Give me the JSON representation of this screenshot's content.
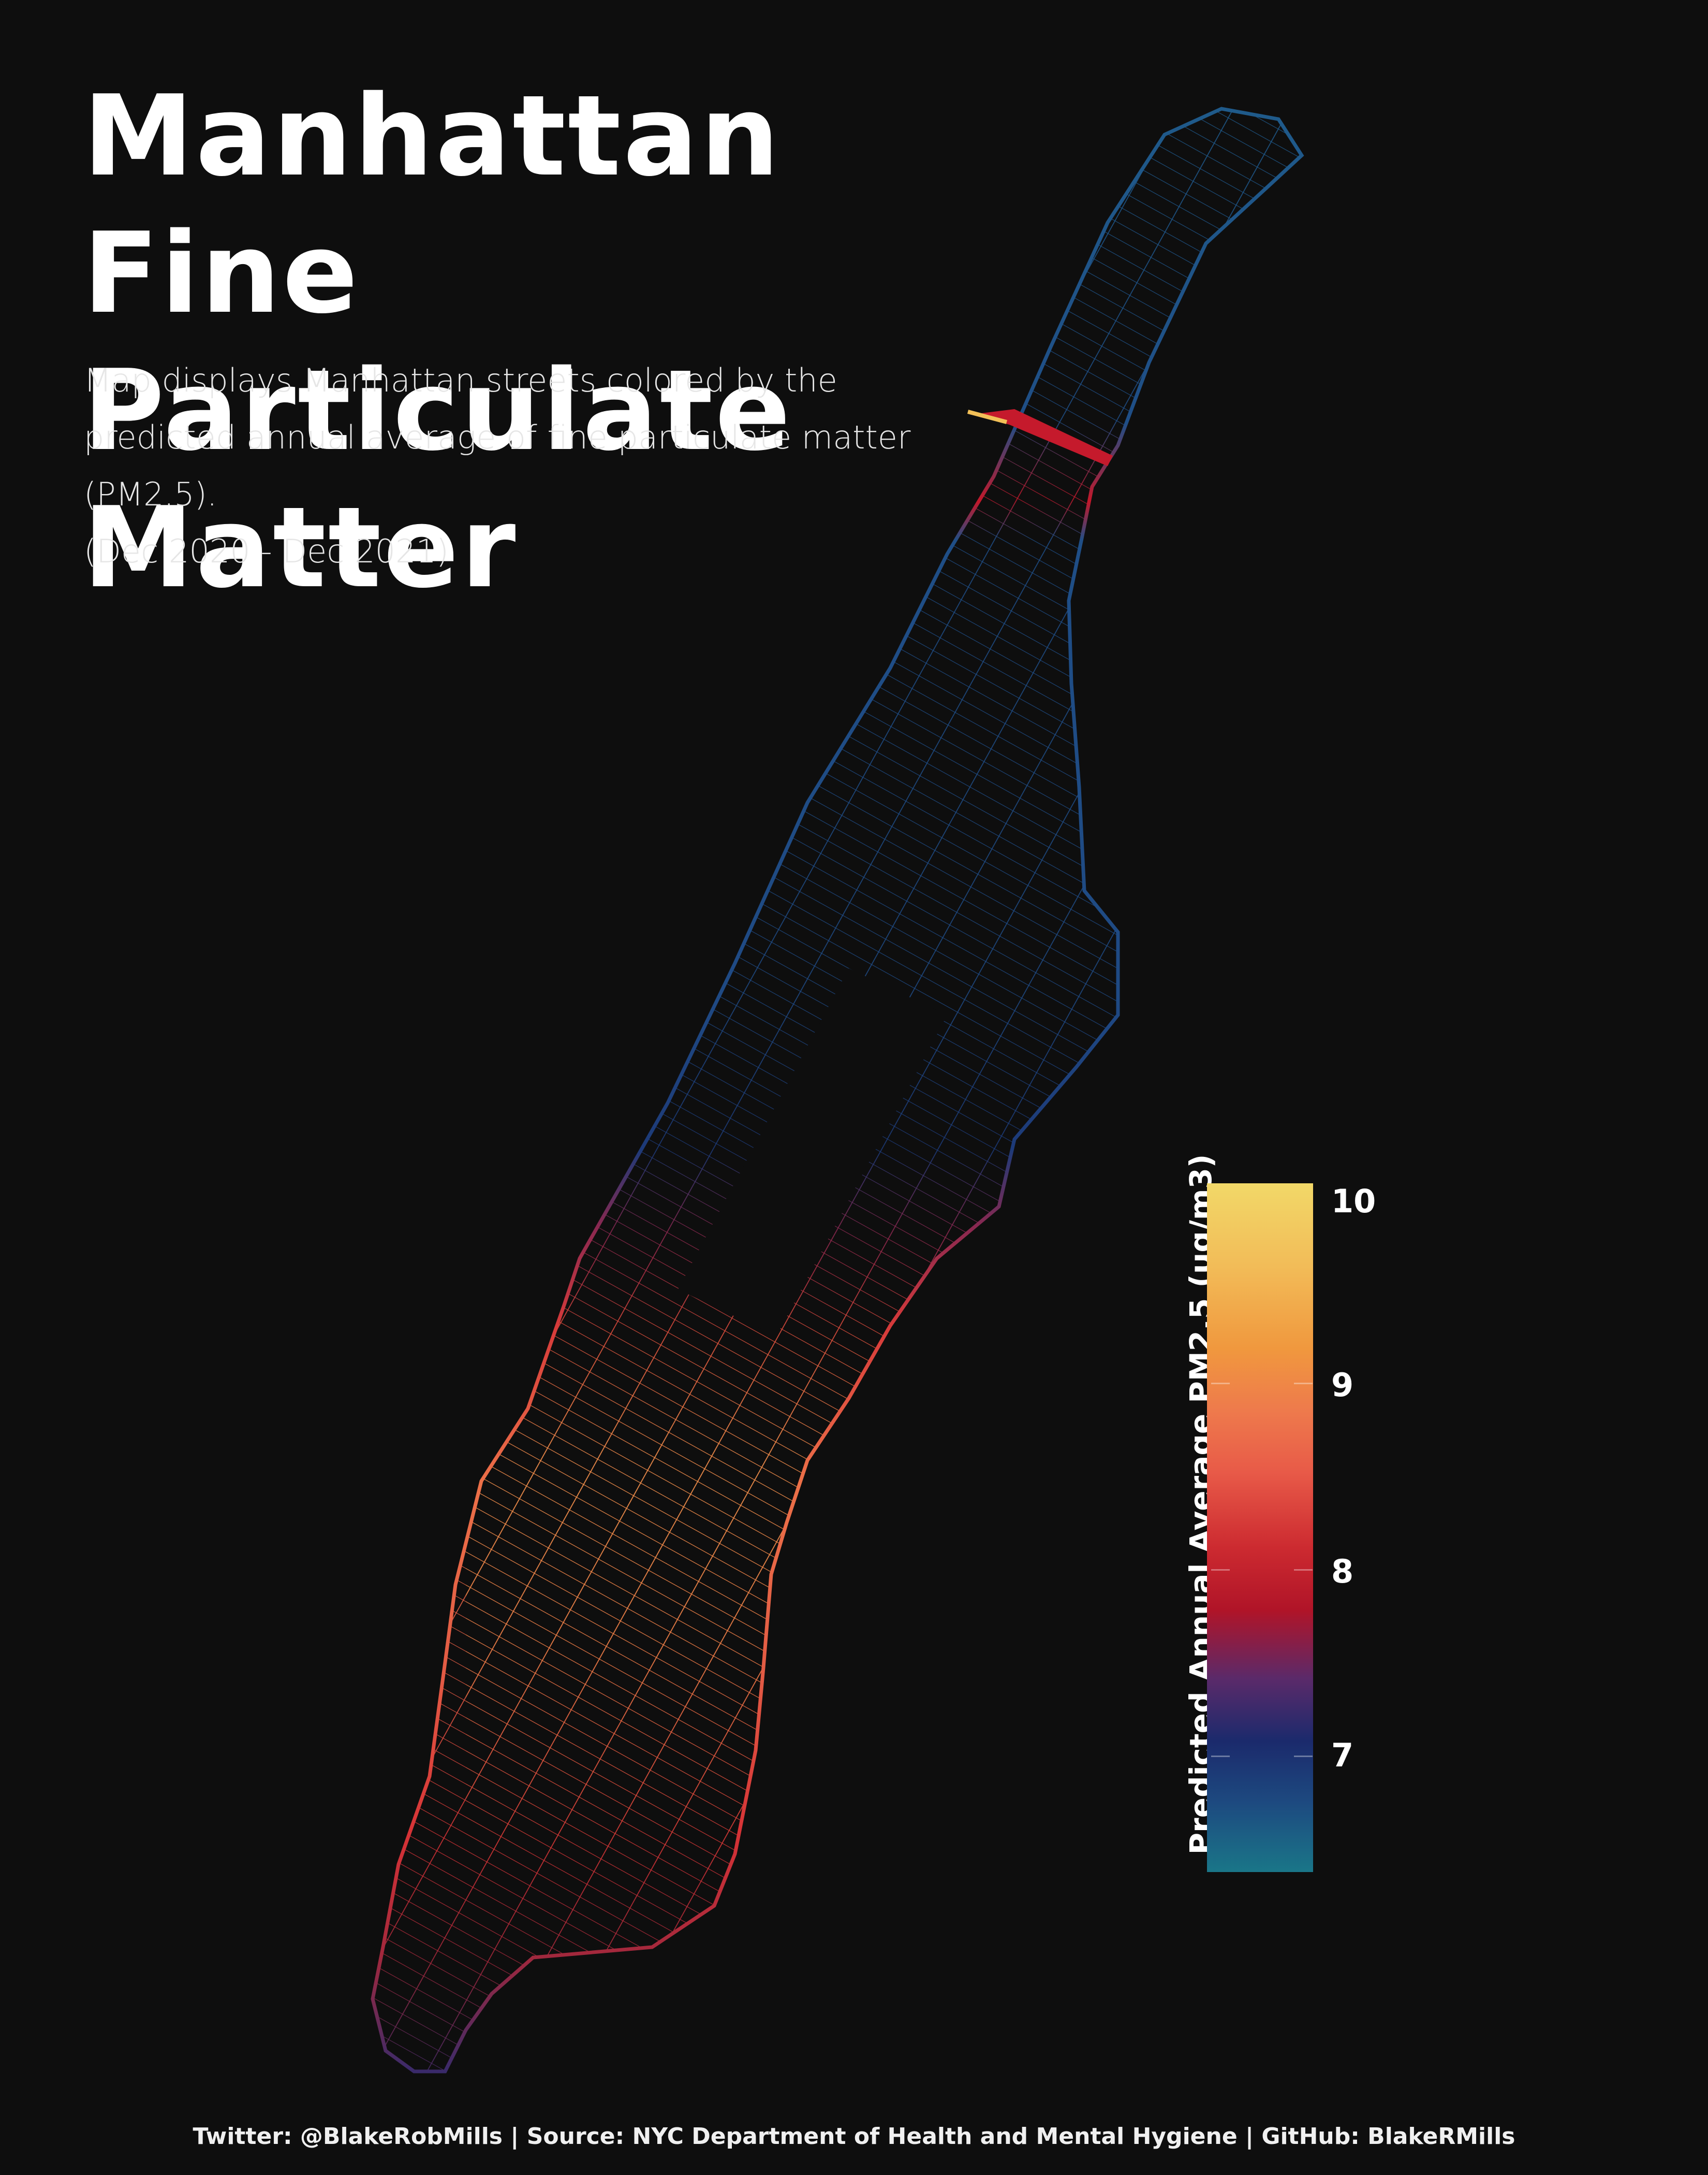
{
  "title": {
    "line1": "Manhattan Fine",
    "line2": "Particulate Matter"
  },
  "subtitle": {
    "line1": "Map displays Manhattan streets colored by the",
    "line2": "predicted annual average of fine particulate matter (PM2.5).",
    "line3": "(Dec 2020 - Dec 2021)"
  },
  "legend": {
    "title": "Predicted Annual Average PM2.5 (ug/m3)",
    "ticks": [
      "10",
      "9",
      "8",
      "7"
    ],
    "range": [
      6.4,
      10.1
    ],
    "palette": [
      "#1a7688",
      "#1b2a6c",
      "#b01428",
      "#e85a48",
      "#f0983e",
      "#f2d868"
    ]
  },
  "caption": "Twitter: @BlakeRobMills | Source: NYC Department of Health and Mental Hygiene | GitHub: BlakeRMills",
  "colors": {
    "background": "#0e0e0e",
    "text": "#ffffff"
  }
}
